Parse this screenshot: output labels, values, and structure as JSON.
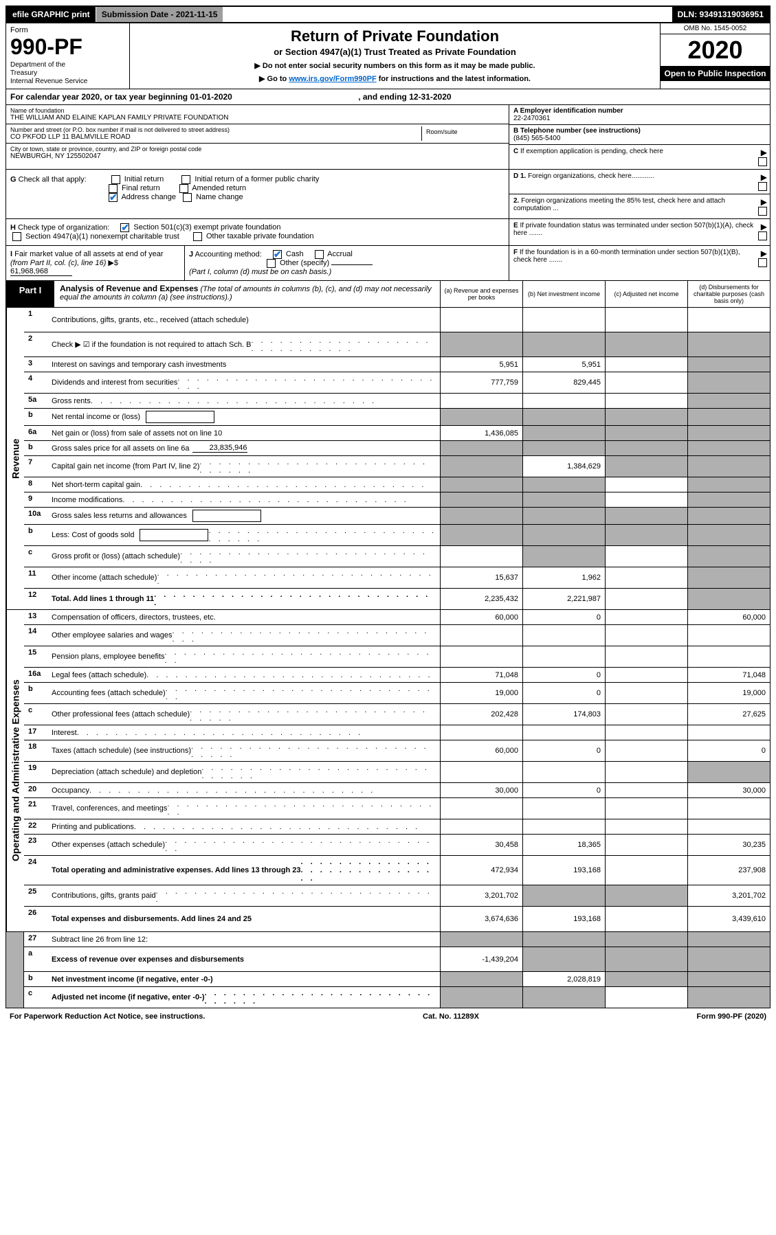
{
  "topbar": {
    "efile": "efile GRAPHIC print",
    "submission": "Submission Date - 2021-11-15",
    "dln": "DLN: 93491319036951"
  },
  "header": {
    "form_label": "Form",
    "form_number": "990-PF",
    "dept": "Department of the Treasury\nInternal Revenue Service",
    "title": "Return of Private Foundation",
    "subtitle": "or Section 4947(a)(1) Trust Treated as Private Foundation",
    "note1": "▶ Do not enter social security numbers on this form as it may be made public.",
    "note2_pre": "▶ Go to ",
    "note2_link": "www.irs.gov/Form990PF",
    "note2_post": " for instructions and the latest information.",
    "omb": "OMB No. 1545-0052",
    "year": "2020",
    "inspection": "Open to Public Inspection"
  },
  "cal": {
    "text_pre": "For calendar year 2020, or tax year beginning ",
    "begin": "01-01-2020",
    "text_mid": ", and ending ",
    "end": "12-31-2020"
  },
  "info": {
    "name_label": "Name of foundation",
    "name": "THE WILLIAM AND ELAINE KAPLAN FAMILY PRIVATE FOUNDATION",
    "addr_label": "Number and street (or P.O. box number if mail is not delivered to street address)",
    "addr": "CO PKFOD LLP 11 BALMVILLE ROAD",
    "room_label": "Room/suite",
    "city_label": "City or town, state or province, country, and ZIP or foreign postal code",
    "city": "NEWBURGH, NY 125502047",
    "ein_label": "A Employer identification number",
    "ein": "22-2470361",
    "phone_label": "B Telephone number (see instructions)",
    "phone": "(845) 565-5400",
    "c_label": "C If exemption application is pending, check here",
    "d1_label": "D 1. Foreign organizations, check here............",
    "d2_label": "2. Foreign organizations meeting the 85% test, check here and attach computation ...",
    "e_label": "E If private foundation status was terminated under section 507(b)(1)(A), check here .......",
    "f_label": "F If the foundation is in a 60-month termination under section 507(b)(1)(B), check here .......",
    "g_label": "G Check all that apply:",
    "g_opts": [
      "Initial return",
      "Initial return of a former public charity",
      "Final return",
      "Amended return",
      "Address change",
      "Name change"
    ],
    "h_label": "H Check type of organization:",
    "h_opts": [
      "Section 501(c)(3) exempt private foundation",
      "Section 4947(a)(1) nonexempt charitable trust",
      "Other taxable private foundation"
    ],
    "i_label": "I Fair market value of all assets at end of year (from Part II, col. (c), line 16) ▶$ ",
    "i_val": "61,968,968",
    "j_label": "J Accounting method:",
    "j_opts": [
      "Cash",
      "Accrual",
      "Other (specify)"
    ],
    "j_note": "(Part I, column (d) must be on cash basis.)"
  },
  "part1": {
    "label": "Part I",
    "title": "Analysis of Revenue and Expenses",
    "title_note": "(The total of amounts in columns (b), (c), and (d) may not necessarily equal the amounts in column (a) (see instructions).)",
    "col_a": "(a) Revenue and expenses per books",
    "col_b": "(b) Net investment income",
    "col_c": "(c) Adjusted net income",
    "col_d": "(d) Disbursements for charitable purposes (cash basis only)"
  },
  "sides": {
    "revenue": "Revenue",
    "expenses": "Operating and Administrative Expenses"
  },
  "rows": [
    {
      "n": "1",
      "desc": "Contributions, gifts, grants, etc., received (attach schedule)",
      "a": "",
      "b": "",
      "c": "",
      "d": "",
      "dshade": true,
      "tall": true
    },
    {
      "n": "2",
      "desc": "Check ▶ ☑ if the foundation is not required to attach Sch. B",
      "dots": true,
      "a": "",
      "as": true,
      "b": "",
      "bs": true,
      "c": "",
      "cs": true,
      "d": "",
      "ds": true,
      "tall": true
    },
    {
      "n": "3",
      "desc": "Interest on savings and temporary cash investments",
      "a": "5,951",
      "b": "5,951",
      "c": "",
      "d": "",
      "ds": true
    },
    {
      "n": "4",
      "desc": "Dividends and interest from securities",
      "dots": true,
      "a": "777,759",
      "b": "829,445",
      "c": "",
      "d": "",
      "ds": true
    },
    {
      "n": "5a",
      "desc": "Gross rents",
      "dots": true,
      "a": "",
      "b": "",
      "c": "",
      "d": "",
      "ds": true
    },
    {
      "n": "b",
      "desc": "Net rental income or (loss)",
      "box": true,
      "a": "",
      "as": true,
      "b": "",
      "bs": true,
      "c": "",
      "cs": true,
      "d": "",
      "ds": true
    },
    {
      "n": "6a",
      "desc": "Net gain or (loss) from sale of assets not on line 10",
      "a": "1,436,085",
      "b": "",
      "bs": true,
      "c": "",
      "cs": true,
      "d": "",
      "ds": true
    },
    {
      "n": "b",
      "desc": "Gross sales price for all assets on line 6a",
      "inline": "23,835,946",
      "a": "",
      "as": true,
      "b": "",
      "bs": true,
      "c": "",
      "cs": true,
      "d": "",
      "ds": true
    },
    {
      "n": "7",
      "desc": "Capital gain net income (from Part IV, line 2)",
      "dots": true,
      "a": "",
      "as": true,
      "b": "1,384,629",
      "c": "",
      "cs": true,
      "d": "",
      "ds": true
    },
    {
      "n": "8",
      "desc": "Net short-term capital gain",
      "dots": true,
      "a": "",
      "as": true,
      "b": "",
      "bs": true,
      "c": "",
      "d": "",
      "ds": true
    },
    {
      "n": "9",
      "desc": "Income modifications",
      "dots": true,
      "a": "",
      "as": true,
      "b": "",
      "bs": true,
      "c": "",
      "d": "",
      "ds": true
    },
    {
      "n": "10a",
      "desc": "Gross sales less returns and allowances",
      "box": true,
      "a": "",
      "as": true,
      "b": "",
      "bs": true,
      "c": "",
      "cs": true,
      "d": "",
      "ds": true
    },
    {
      "n": "b",
      "desc": "Less: Cost of goods sold",
      "dots": true,
      "box": true,
      "a": "",
      "as": true,
      "b": "",
      "bs": true,
      "c": "",
      "cs": true,
      "d": "",
      "ds": true
    },
    {
      "n": "c",
      "desc": "Gross profit or (loss) (attach schedule)",
      "dots": true,
      "a": "",
      "b": "",
      "bs": true,
      "c": "",
      "d": "",
      "ds": true
    },
    {
      "n": "11",
      "desc": "Other income (attach schedule)",
      "dots": true,
      "a": "15,637",
      "b": "1,962",
      "c": "",
      "d": "",
      "ds": true
    },
    {
      "n": "12",
      "desc": "Total. Add lines 1 through 11",
      "dots": true,
      "bold": true,
      "a": "2,235,432",
      "b": "2,221,987",
      "c": "",
      "d": "",
      "ds": true
    }
  ],
  "exp_rows": [
    {
      "n": "13",
      "desc": "Compensation of officers, directors, trustees, etc.",
      "a": "60,000",
      "b": "0",
      "c": "",
      "d": "60,000"
    },
    {
      "n": "14",
      "desc": "Other employee salaries and wages",
      "dots": true,
      "a": "",
      "b": "",
      "c": "",
      "d": ""
    },
    {
      "n": "15",
      "desc": "Pension plans, employee benefits",
      "dots": true,
      "a": "",
      "b": "",
      "c": "",
      "d": ""
    },
    {
      "n": "16a",
      "desc": "Legal fees (attach schedule)",
      "dots": true,
      "a": "71,048",
      "b": "0",
      "c": "",
      "d": "71,048"
    },
    {
      "n": "b",
      "desc": "Accounting fees (attach schedule)",
      "dots": true,
      "a": "19,000",
      "b": "0",
      "c": "",
      "d": "19,000"
    },
    {
      "n": "c",
      "desc": "Other professional fees (attach schedule)",
      "dots": true,
      "a": "202,428",
      "b": "174,803",
      "c": "",
      "d": "27,625"
    },
    {
      "n": "17",
      "desc": "Interest",
      "dots": true,
      "a": "",
      "b": "",
      "c": "",
      "d": ""
    },
    {
      "n": "18",
      "desc": "Taxes (attach schedule) (see instructions)",
      "dots": true,
      "a": "60,000",
      "b": "0",
      "c": "",
      "d": "0"
    },
    {
      "n": "19",
      "desc": "Depreciation (attach schedule) and depletion",
      "dots": true,
      "a": "",
      "b": "",
      "c": "",
      "d": "",
      "ds": true
    },
    {
      "n": "20",
      "desc": "Occupancy",
      "dots": true,
      "a": "30,000",
      "b": "0",
      "c": "",
      "d": "30,000"
    },
    {
      "n": "21",
      "desc": "Travel, conferences, and meetings",
      "dots": true,
      "a": "",
      "b": "",
      "c": "",
      "d": ""
    },
    {
      "n": "22",
      "desc": "Printing and publications",
      "dots": true,
      "a": "",
      "b": "",
      "c": "",
      "d": ""
    },
    {
      "n": "23",
      "desc": "Other expenses (attach schedule)",
      "dots": true,
      "a": "30,458",
      "b": "18,365",
      "c": "",
      "d": "30,235"
    },
    {
      "n": "24",
      "desc": "Total operating and administrative expenses. Add lines 13 through 23",
      "dots": true,
      "bold": true,
      "a": "472,934",
      "b": "193,168",
      "c": "",
      "d": "237,908",
      "tall": true
    },
    {
      "n": "25",
      "desc": "Contributions, gifts, grants paid",
      "dots": true,
      "a": "3,201,702",
      "b": "",
      "bs": true,
      "c": "",
      "cs": true,
      "d": "3,201,702"
    },
    {
      "n": "26",
      "desc": "Total expenses and disbursements. Add lines 24 and 25",
      "bold": true,
      "a": "3,674,636",
      "b": "193,168",
      "c": "",
      "d": "3,439,610",
      "tall": true
    }
  ],
  "net_rows": [
    {
      "n": "27",
      "desc": "Subtract line 26 from line 12:",
      "a": "",
      "as": true,
      "b": "",
      "bs": true,
      "c": "",
      "cs": true,
      "d": "",
      "ds": true
    },
    {
      "n": "a",
      "desc": "Excess of revenue over expenses and disbursements",
      "bold": true,
      "a": "-1,439,204",
      "b": "",
      "bs": true,
      "c": "",
      "cs": true,
      "d": "",
      "ds": true,
      "tall": true
    },
    {
      "n": "b",
      "desc": "Net investment income (if negative, enter -0-)",
      "bold": true,
      "a": "",
      "as": true,
      "b": "2,028,819",
      "c": "",
      "cs": true,
      "d": "",
      "ds": true
    },
    {
      "n": "c",
      "desc": "Adjusted net income (if negative, enter -0-)",
      "dots": true,
      "bold": true,
      "a": "",
      "as": true,
      "b": "",
      "bs": true,
      "c": "",
      "d": "",
      "ds": true
    }
  ],
  "footer": {
    "left": "For Paperwork Reduction Act Notice, see instructions.",
    "mid": "Cat. No. 11289X",
    "right": "Form 990-PF (2020)"
  }
}
